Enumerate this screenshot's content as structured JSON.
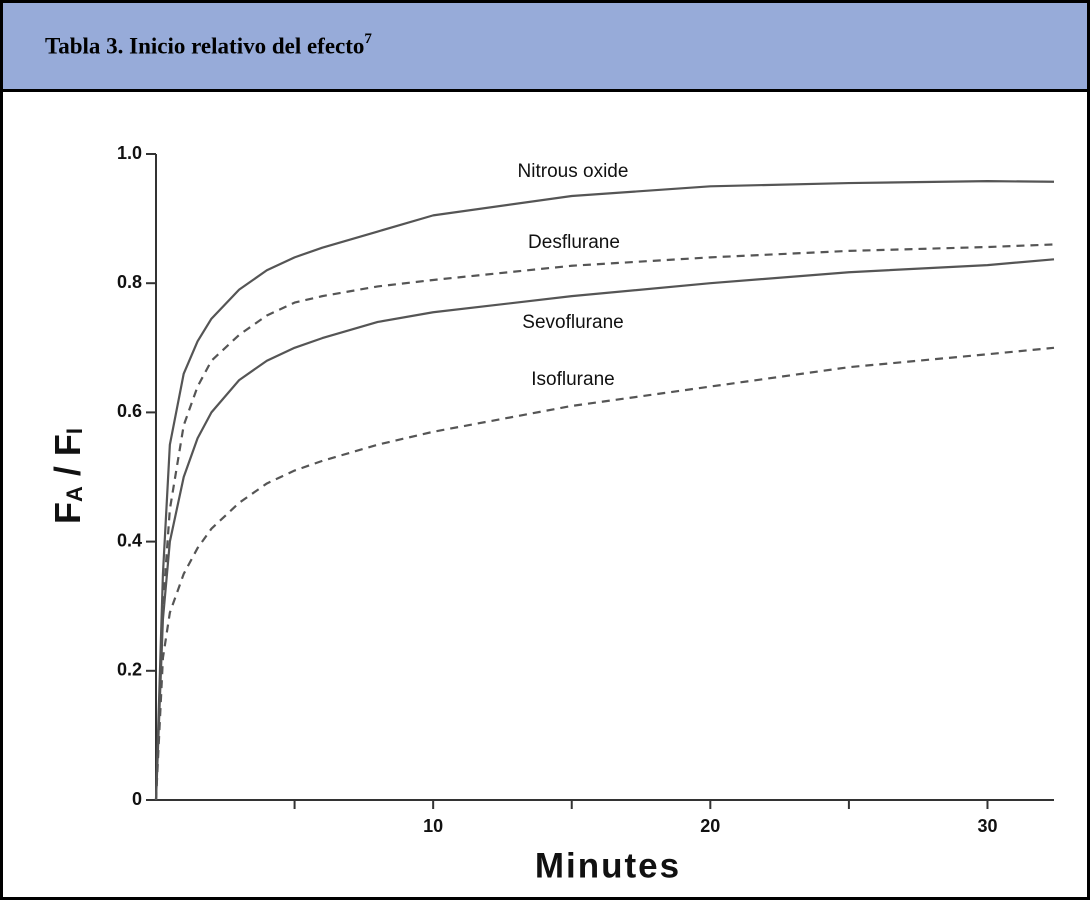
{
  "chart_data": {
    "type": "line",
    "title": "Tabla 3. Inicio relativo del efecto",
    "title_ref": "7",
    "xlabel": "Minutes",
    "ylabel": [
      {
        "text": "F",
        "sub": false
      },
      {
        "text": "A",
        "sub": true
      },
      {
        "text": " / F",
        "sub": false
      },
      {
        "text": "I",
        "sub": true
      }
    ],
    "x": [
      0,
      0.25,
      0.5,
      1,
      1.5,
      2,
      3,
      4,
      5,
      6,
      8,
      10,
      15,
      20,
      25,
      30,
      32.4
    ],
    "series": [
      {
        "name": "Nitrous oxide",
        "color": "#555555",
        "dashed": false,
        "values": [
          0,
          0.35,
          0.55,
          0.66,
          0.71,
          0.745,
          0.79,
          0.82,
          0.84,
          0.855,
          0.88,
          0.905,
          0.935,
          0.95,
          0.955,
          0.958,
          0.957
        ]
      },
      {
        "name": "Desflurane",
        "color": "#555555",
        "dashed": true,
        "values": [
          0,
          0.3,
          0.45,
          0.58,
          0.64,
          0.68,
          0.72,
          0.75,
          0.77,
          0.78,
          0.795,
          0.805,
          0.827,
          0.84,
          0.85,
          0.856,
          0.86
        ]
      },
      {
        "name": "Sevoflurane",
        "color": "#555555",
        "dashed": false,
        "values": [
          0,
          0.28,
          0.4,
          0.5,
          0.56,
          0.6,
          0.65,
          0.68,
          0.7,
          0.715,
          0.74,
          0.755,
          0.78,
          0.8,
          0.817,
          0.828,
          0.837
        ]
      },
      {
        "name": "Isoflurane",
        "color": "#555555",
        "dashed": true,
        "values": [
          0,
          0.22,
          0.29,
          0.35,
          0.39,
          0.42,
          0.46,
          0.49,
          0.51,
          0.525,
          0.55,
          0.57,
          0.61,
          0.64,
          0.67,
          0.69,
          0.7
        ]
      }
    ],
    "xlim": [
      0,
      32.4
    ],
    "xticks": [
      10,
      20,
      30
    ],
    "xminorticks": [
      5,
      15,
      25
    ],
    "ylim": [
      0,
      1
    ],
    "yticks": [
      0,
      0.2,
      0.4,
      0.6,
      0.8,
      {
        "value": 1,
        "label": "1.0"
      }
    ]
  }
}
